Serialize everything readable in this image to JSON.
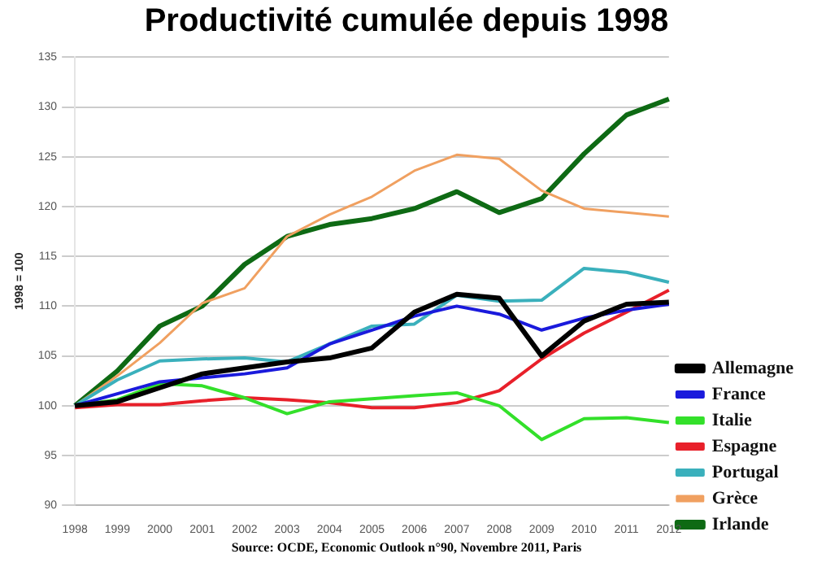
{
  "chart_data": {
    "type": "line",
    "title": "Productivité cumulée depuis 1998",
    "ylabel": "1998 = 100",
    "categories": [
      "1998",
      "1999",
      "2000",
      "2001",
      "2002",
      "2003",
      "2004",
      "2005",
      "2006",
      "2007",
      "2008",
      "2009",
      "2010",
      "2011",
      "2012"
    ],
    "series": [
      {
        "name": "Allemagne",
        "color": "#000000",
        "values": [
          100,
          100.4,
          101.8,
          103.2,
          103.8,
          104.4,
          104.8,
          105.8,
          109.4,
          111.2,
          110.8,
          105,
          108.5,
          110.2,
          110.4
        ]
      },
      {
        "name": "France",
        "color": "#1a1adc",
        "values": [
          100,
          101.2,
          102.4,
          102.8,
          103.2,
          103.8,
          106.2,
          107.6,
          109,
          110,
          109.2,
          107.6,
          108.8,
          109.6,
          110.2
        ]
      },
      {
        "name": "Italie",
        "color": "#33e02a",
        "values": [
          100,
          100.6,
          102.2,
          102,
          100.8,
          99.2,
          100.4,
          100.7,
          101,
          101.3,
          100,
          96.6,
          98.7,
          98.8,
          98.3
        ]
      },
      {
        "name": "Espagne",
        "color": "#e8202a",
        "values": [
          99.8,
          100.1,
          100.1,
          100.5,
          100.8,
          100.6,
          100.3,
          99.8,
          99.8,
          100.3,
          101.5,
          104.7,
          107.3,
          109.4,
          111.6
        ]
      },
      {
        "name": "Portugal",
        "color": "#3ab0bc",
        "values": [
          100,
          102.6,
          104.5,
          104.7,
          104.8,
          104.4,
          106.2,
          108,
          108.2,
          111.1,
          110.5,
          110.6,
          113.8,
          113.4,
          112.4
        ]
      },
      {
        "name": "Grèce",
        "color": "#f0a060",
        "values": [
          100,
          103,
          106.3,
          110.3,
          111.8,
          117,
          119.2,
          121,
          123.6,
          125.2,
          124.8,
          121.6,
          119.8,
          119.4,
          119
        ]
      },
      {
        "name": "Irlande",
        "color": "#0e6a14",
        "values": [
          100,
          103.5,
          108,
          110,
          114.2,
          117,
          118.2,
          118.8,
          119.8,
          121.5,
          119.4,
          120.8,
          125.3,
          129.2,
          130.8
        ]
      }
    ],
    "ylim": [
      90,
      135
    ],
    "yticks": [
      90,
      95,
      100,
      105,
      110,
      115,
      120,
      125,
      130,
      135
    ],
    "grid": "y",
    "legend": "right",
    "marker": "none",
    "line_style": "solid",
    "annotations": [
      "Source: OCDE, Economic Outlook n°90, Novembre 2011, Paris"
    ]
  }
}
